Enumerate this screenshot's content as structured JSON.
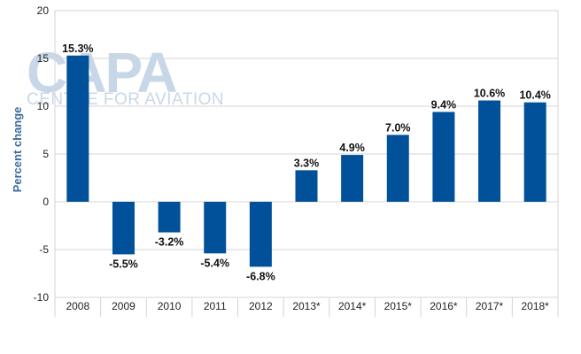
{
  "chart_data": {
    "type": "bar",
    "categories": [
      "2008",
      "2009",
      "2010",
      "2011",
      "2012",
      "2013*",
      "2014*",
      "2015*",
      "2016*",
      "2017*",
      "2018*"
    ],
    "values": [
      15.3,
      -5.5,
      -3.2,
      -5.4,
      -6.8,
      3.3,
      4.9,
      7.0,
      9.4,
      10.6,
      10.4
    ],
    "data_labels": [
      "15.3%",
      "-5.5%",
      "-3.2%",
      "-5.4%",
      "-6.8%",
      "3.3%",
      "4.9%",
      "7.0%",
      "9.4%",
      "10.6%",
      "10.4%"
    ],
    "title": "",
    "xlabel": "",
    "ylabel": "Percent change",
    "ylim": [
      -10,
      20
    ],
    "yticks": [
      "20",
      "15",
      "10",
      "5",
      "0",
      "-5",
      "-10"
    ],
    "ytick_values": [
      20,
      15,
      10,
      5,
      0,
      -5,
      -10
    ],
    "grid": true,
    "colors": {
      "bar": "#00519a",
      "grid": "#d4d4d4",
      "axis_label": "#3c6e9e",
      "watermark": "#c8d7e8"
    }
  },
  "watermark": {
    "logo_text": "CAPA",
    "tagline": "CENTRE FOR AVIATION"
  }
}
